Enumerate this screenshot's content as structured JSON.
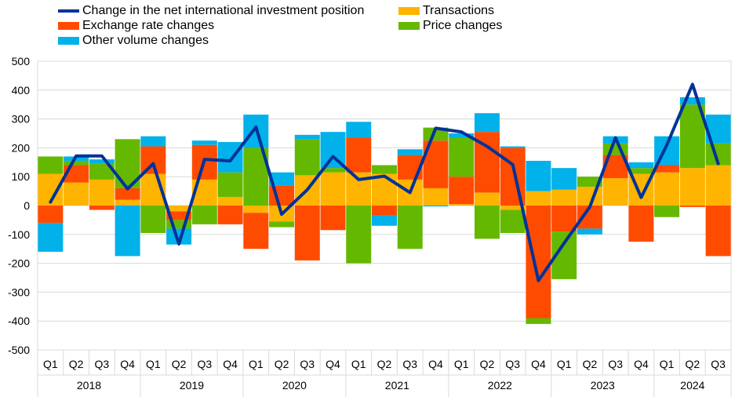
{
  "chart_data": {
    "type": "bar",
    "stacked": true,
    "title": "",
    "xlabel": "",
    "ylabel": "",
    "ylim": [
      -500,
      500
    ],
    "yticks": [
      -500,
      -400,
      -300,
      -200,
      -100,
      0,
      100,
      200,
      300,
      400,
      500
    ],
    "grid": "horizontal",
    "legend_position": "top",
    "categories": [
      "Q1",
      "Q2",
      "Q3",
      "Q4",
      "Q1",
      "Q2",
      "Q3",
      "Q4",
      "Q1",
      "Q2",
      "Q3",
      "Q4",
      "Q1",
      "Q2",
      "Q3",
      "Q4",
      "Q1",
      "Q2",
      "Q3",
      "Q4",
      "Q1",
      "Q2",
      "Q3",
      "Q4",
      "Q1",
      "Q2",
      "Q3"
    ],
    "years": [
      {
        "label": "2018",
        "span": 4
      },
      {
        "label": "2019",
        "span": 4
      },
      {
        "label": "2020",
        "span": 4
      },
      {
        "label": "2021",
        "span": 4
      },
      {
        "label": "2022",
        "span": 4
      },
      {
        "label": "2023",
        "span": 4
      },
      {
        "label": "2024",
        "span": 3
      }
    ],
    "series": [
      {
        "name": "Transactions",
        "kind": "bar",
        "color": "#FFB400",
        "values": [
          110,
          80,
          90,
          20,
          110,
          -20,
          90,
          30,
          -25,
          -55,
          105,
          115,
          115,
          110,
          90,
          60,
          5,
          45,
          -15,
          50,
          55,
          65,
          95,
          110,
          115,
          130,
          140
        ]
      },
      {
        "name": "Exchange rate changes",
        "kind": "bar",
        "color": "#FF4B00",
        "values": [
          -60,
          60,
          -15,
          40,
          95,
          -30,
          120,
          -65,
          -125,
          70,
          -190,
          -85,
          120,
          -35,
          85,
          165,
          95,
          210,
          200,
          -390,
          -90,
          -80,
          80,
          -125,
          25,
          -5,
          -175
        ]
      },
      {
        "name": "Price changes",
        "kind": "bar",
        "color": "#65B800",
        "values": [
          60,
          15,
          55,
          170,
          -95,
          -30,
          -65,
          85,
          200,
          -20,
          125,
          15,
          -200,
          30,
          -150,
          45,
          135,
          -115,
          -80,
          -20,
          -165,
          35,
          40,
          20,
          -40,
          220,
          75
        ]
      },
      {
        "name": "Other volume changes",
        "kind": "bar",
        "color": "#00B1EA",
        "values": [
          -100,
          15,
          15,
          -175,
          35,
          -55,
          15,
          105,
          115,
          45,
          15,
          125,
          55,
          -35,
          20,
          -3,
          15,
          65,
          5,
          105,
          75,
          -20,
          25,
          20,
          100,
          25,
          100
        ]
      },
      {
        "name": "Change in the net international investment position",
        "kind": "line",
        "color": "#003299",
        "values": [
          12,
          172,
          172,
          58,
          145,
          -133,
          160,
          155,
          272,
          -30,
          55,
          170,
          90,
          102,
          45,
          268,
          255,
          205,
          142,
          -260,
          -130,
          -5,
          235,
          28,
          210,
          420,
          145
        ]
      }
    ]
  }
}
